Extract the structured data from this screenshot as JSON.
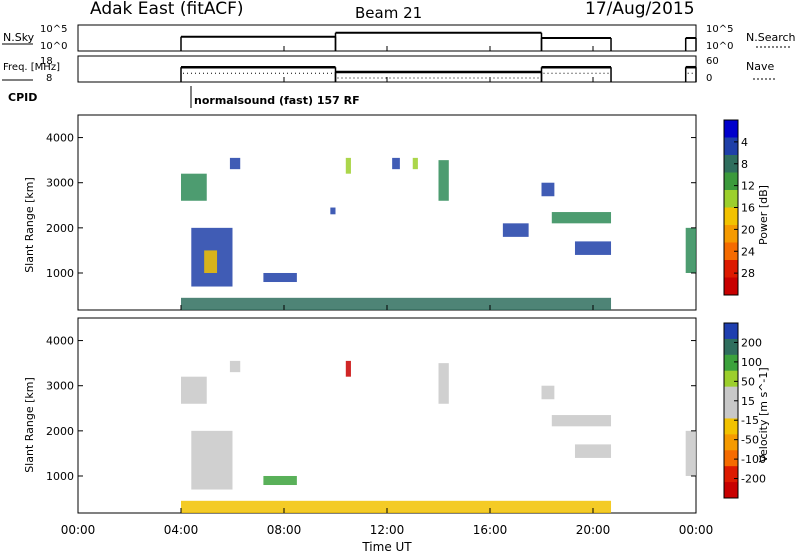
{
  "header": {
    "station": "Adak East (fitACF)",
    "beam": "Beam 21",
    "date": "17/Aug/2015"
  },
  "colors": {
    "frame": "#000000",
    "data": "#000000"
  },
  "chart_data": [
    {
      "type": "line",
      "panel": "noise",
      "left_label": "N.Sky",
      "right_label": "N.Search",
      "left_ticks": [
        "10^5",
        "10^0"
      ],
      "right_ticks": [
        "10^5",
        "10^0"
      ],
      "x_range_hours": [
        0,
        24
      ],
      "segments": [
        {
          "x_start": 4.0,
          "x_end": 10.0,
          "level": 0.55
        },
        {
          "x_start": 10.0,
          "x_end": 18.0,
          "level": 0.7
        },
        {
          "x_start": 18.0,
          "x_end": 20.7,
          "level": 0.5
        },
        {
          "x_start": 23.6,
          "x_end": 24.0,
          "level": 0.5
        }
      ]
    },
    {
      "type": "line",
      "panel": "frequency",
      "left_label": "Freq. [MHz]",
      "right_label": "Nave",
      "left_ticks": [
        18,
        8
      ],
      "right_ticks": [
        60,
        0
      ],
      "x_range_hours": [
        0,
        24
      ],
      "frequency_mhz": [
        {
          "x_start": 4.0,
          "x_end": 10.0,
          "value": 14.0
        },
        {
          "x_start": 10.0,
          "x_end": 18.0,
          "value": 11.3
        },
        {
          "x_start": 18.0,
          "x_end": 20.7,
          "value": 14.0
        },
        {
          "x_start": 23.6,
          "x_end": 24.0,
          "value": 14.0
        }
      ]
    },
    {
      "type": "table",
      "panel": "cpid",
      "label": "CPID",
      "entries": [
        {
          "start_hour": 4.0,
          "text": "normalsound (fast) 157 RF"
        }
      ]
    },
    {
      "type": "heatmap",
      "panel": "power",
      "ylabel": "Slant Range [km]",
      "x_range_hours": [
        0,
        24
      ],
      "ylim": [
        180,
        4500
      ],
      "y_ticks": [
        1000,
        2000,
        3000,
        4000
      ],
      "colorbar": {
        "label": "Power [dB]",
        "ticks": [
          "4",
          "8",
          "12",
          "16",
          "20",
          "24",
          "28"
        ],
        "colors": [
          "#0000cc",
          "#1f3fa8",
          "#2f6e5e",
          "#3c9a3c",
          "#9ccf2c",
          "#f2c200",
          "#f59a00",
          "#f56b00",
          "#dd1a00",
          "#c80000"
        ]
      },
      "regions": [
        {
          "t0": 4.0,
          "t1": 5.0,
          "r0": 2600,
          "r1": 3200,
          "color": "#2e8b57"
        },
        {
          "t0": 4.4,
          "t1": 6.0,
          "r0": 700,
          "r1": 2000,
          "color": "#1f3fa8"
        },
        {
          "t0": 4.9,
          "t1": 5.4,
          "r0": 1000,
          "r1": 1500,
          "color": "#f2c200"
        },
        {
          "t0": 5.9,
          "t1": 6.3,
          "r0": 3300,
          "r1": 3550,
          "color": "#1f3fa8"
        },
        {
          "t0": 7.2,
          "t1": 8.5,
          "r0": 800,
          "r1": 1000,
          "color": "#1f3fa8"
        },
        {
          "t0": 9.8,
          "t1": 10.0,
          "r0": 2300,
          "r1": 2450,
          "color": "#1f3fa8"
        },
        {
          "t0": 10.4,
          "t1": 10.6,
          "r0": 3200,
          "r1": 3550,
          "color": "#9ccf2c"
        },
        {
          "t0": 12.2,
          "t1": 12.5,
          "r0": 3300,
          "r1": 3550,
          "color": "#1f3fa8"
        },
        {
          "t0": 13.0,
          "t1": 13.2,
          "r0": 3300,
          "r1": 3550,
          "color": "#9ccf2c"
        },
        {
          "t0": 14.0,
          "t1": 14.4,
          "r0": 2600,
          "r1": 3500,
          "color": "#2e8b57"
        },
        {
          "t0": 16.5,
          "t1": 17.5,
          "r0": 1800,
          "r1": 2100,
          "color": "#1f3fa8"
        },
        {
          "t0": 18.0,
          "t1": 18.5,
          "r0": 2700,
          "r1": 3000,
          "color": "#1f3fa8"
        },
        {
          "t0": 18.4,
          "t1": 20.7,
          "r0": 2100,
          "r1": 2350,
          "color": "#2e8b57"
        },
        {
          "t0": 19.3,
          "t1": 20.7,
          "r0": 1400,
          "r1": 1700,
          "color": "#1f3fa8"
        },
        {
          "t0": 23.6,
          "t1": 24.0,
          "r0": 1000,
          "r1": 2000,
          "color": "#2e8b57"
        },
        {
          "t0": 4.0,
          "t1": 20.7,
          "r0": 180,
          "r1": 450,
          "color": "#2f6e5e"
        }
      ]
    },
    {
      "type": "heatmap",
      "panel": "velocity",
      "ylabel": "Slant Range [km]",
      "xlabel": "Time UT",
      "x_range_hours": [
        0,
        24
      ],
      "x_ticks": [
        "00:00",
        "04:00",
        "08:00",
        "12:00",
        "16:00",
        "20:00",
        "00:00"
      ],
      "ylim": [
        180,
        4500
      ],
      "y_ticks": [
        1000,
        2000,
        3000,
        4000
      ],
      "colorbar": {
        "label": "Velocity [m s^-1]",
        "ticks": [
          "200",
          "100",
          "50",
          "15",
          "-15",
          "-50",
          "-100",
          "-200"
        ],
        "colors": [
          "#1f3faf",
          "#2f6e5e",
          "#3ca23c",
          "#9ccf2c",
          "#c8c8c8",
          "#c8c8c8",
          "#f2c200",
          "#f59a00",
          "#f56b00",
          "#dd1a00",
          "#c80000"
        ]
      },
      "regions": [
        {
          "t0": 4.0,
          "t1": 5.0,
          "r0": 2600,
          "r1": 3200,
          "color": "#c8c8c8"
        },
        {
          "t0": 4.4,
          "t1": 6.0,
          "r0": 700,
          "r1": 2000,
          "color": "#c8c8c8"
        },
        {
          "t0": 5.9,
          "t1": 6.3,
          "r0": 3300,
          "r1": 3550,
          "color": "#c8c8c8"
        },
        {
          "t0": 7.2,
          "t1": 8.5,
          "r0": 800,
          "r1": 1000,
          "color": "#3ca23c"
        },
        {
          "t0": 10.4,
          "t1": 10.6,
          "r0": 3200,
          "r1": 3550,
          "color": "#c80000"
        },
        {
          "t0": 14.0,
          "t1": 14.4,
          "r0": 2600,
          "r1": 3500,
          "color": "#c8c8c8"
        },
        {
          "t0": 18.0,
          "t1": 18.5,
          "r0": 2700,
          "r1": 3000,
          "color": "#c8c8c8"
        },
        {
          "t0": 18.4,
          "t1": 20.7,
          "r0": 2100,
          "r1": 2350,
          "color": "#c8c8c8"
        },
        {
          "t0": 19.3,
          "t1": 20.7,
          "r0": 1400,
          "r1": 1700,
          "color": "#c8c8c8"
        },
        {
          "t0": 23.6,
          "t1": 24.0,
          "r0": 1000,
          "r1": 2000,
          "color": "#c8c8c8"
        },
        {
          "t0": 4.0,
          "t1": 20.7,
          "r0": 180,
          "r1": 450,
          "color": "#f2c200"
        }
      ]
    }
  ]
}
